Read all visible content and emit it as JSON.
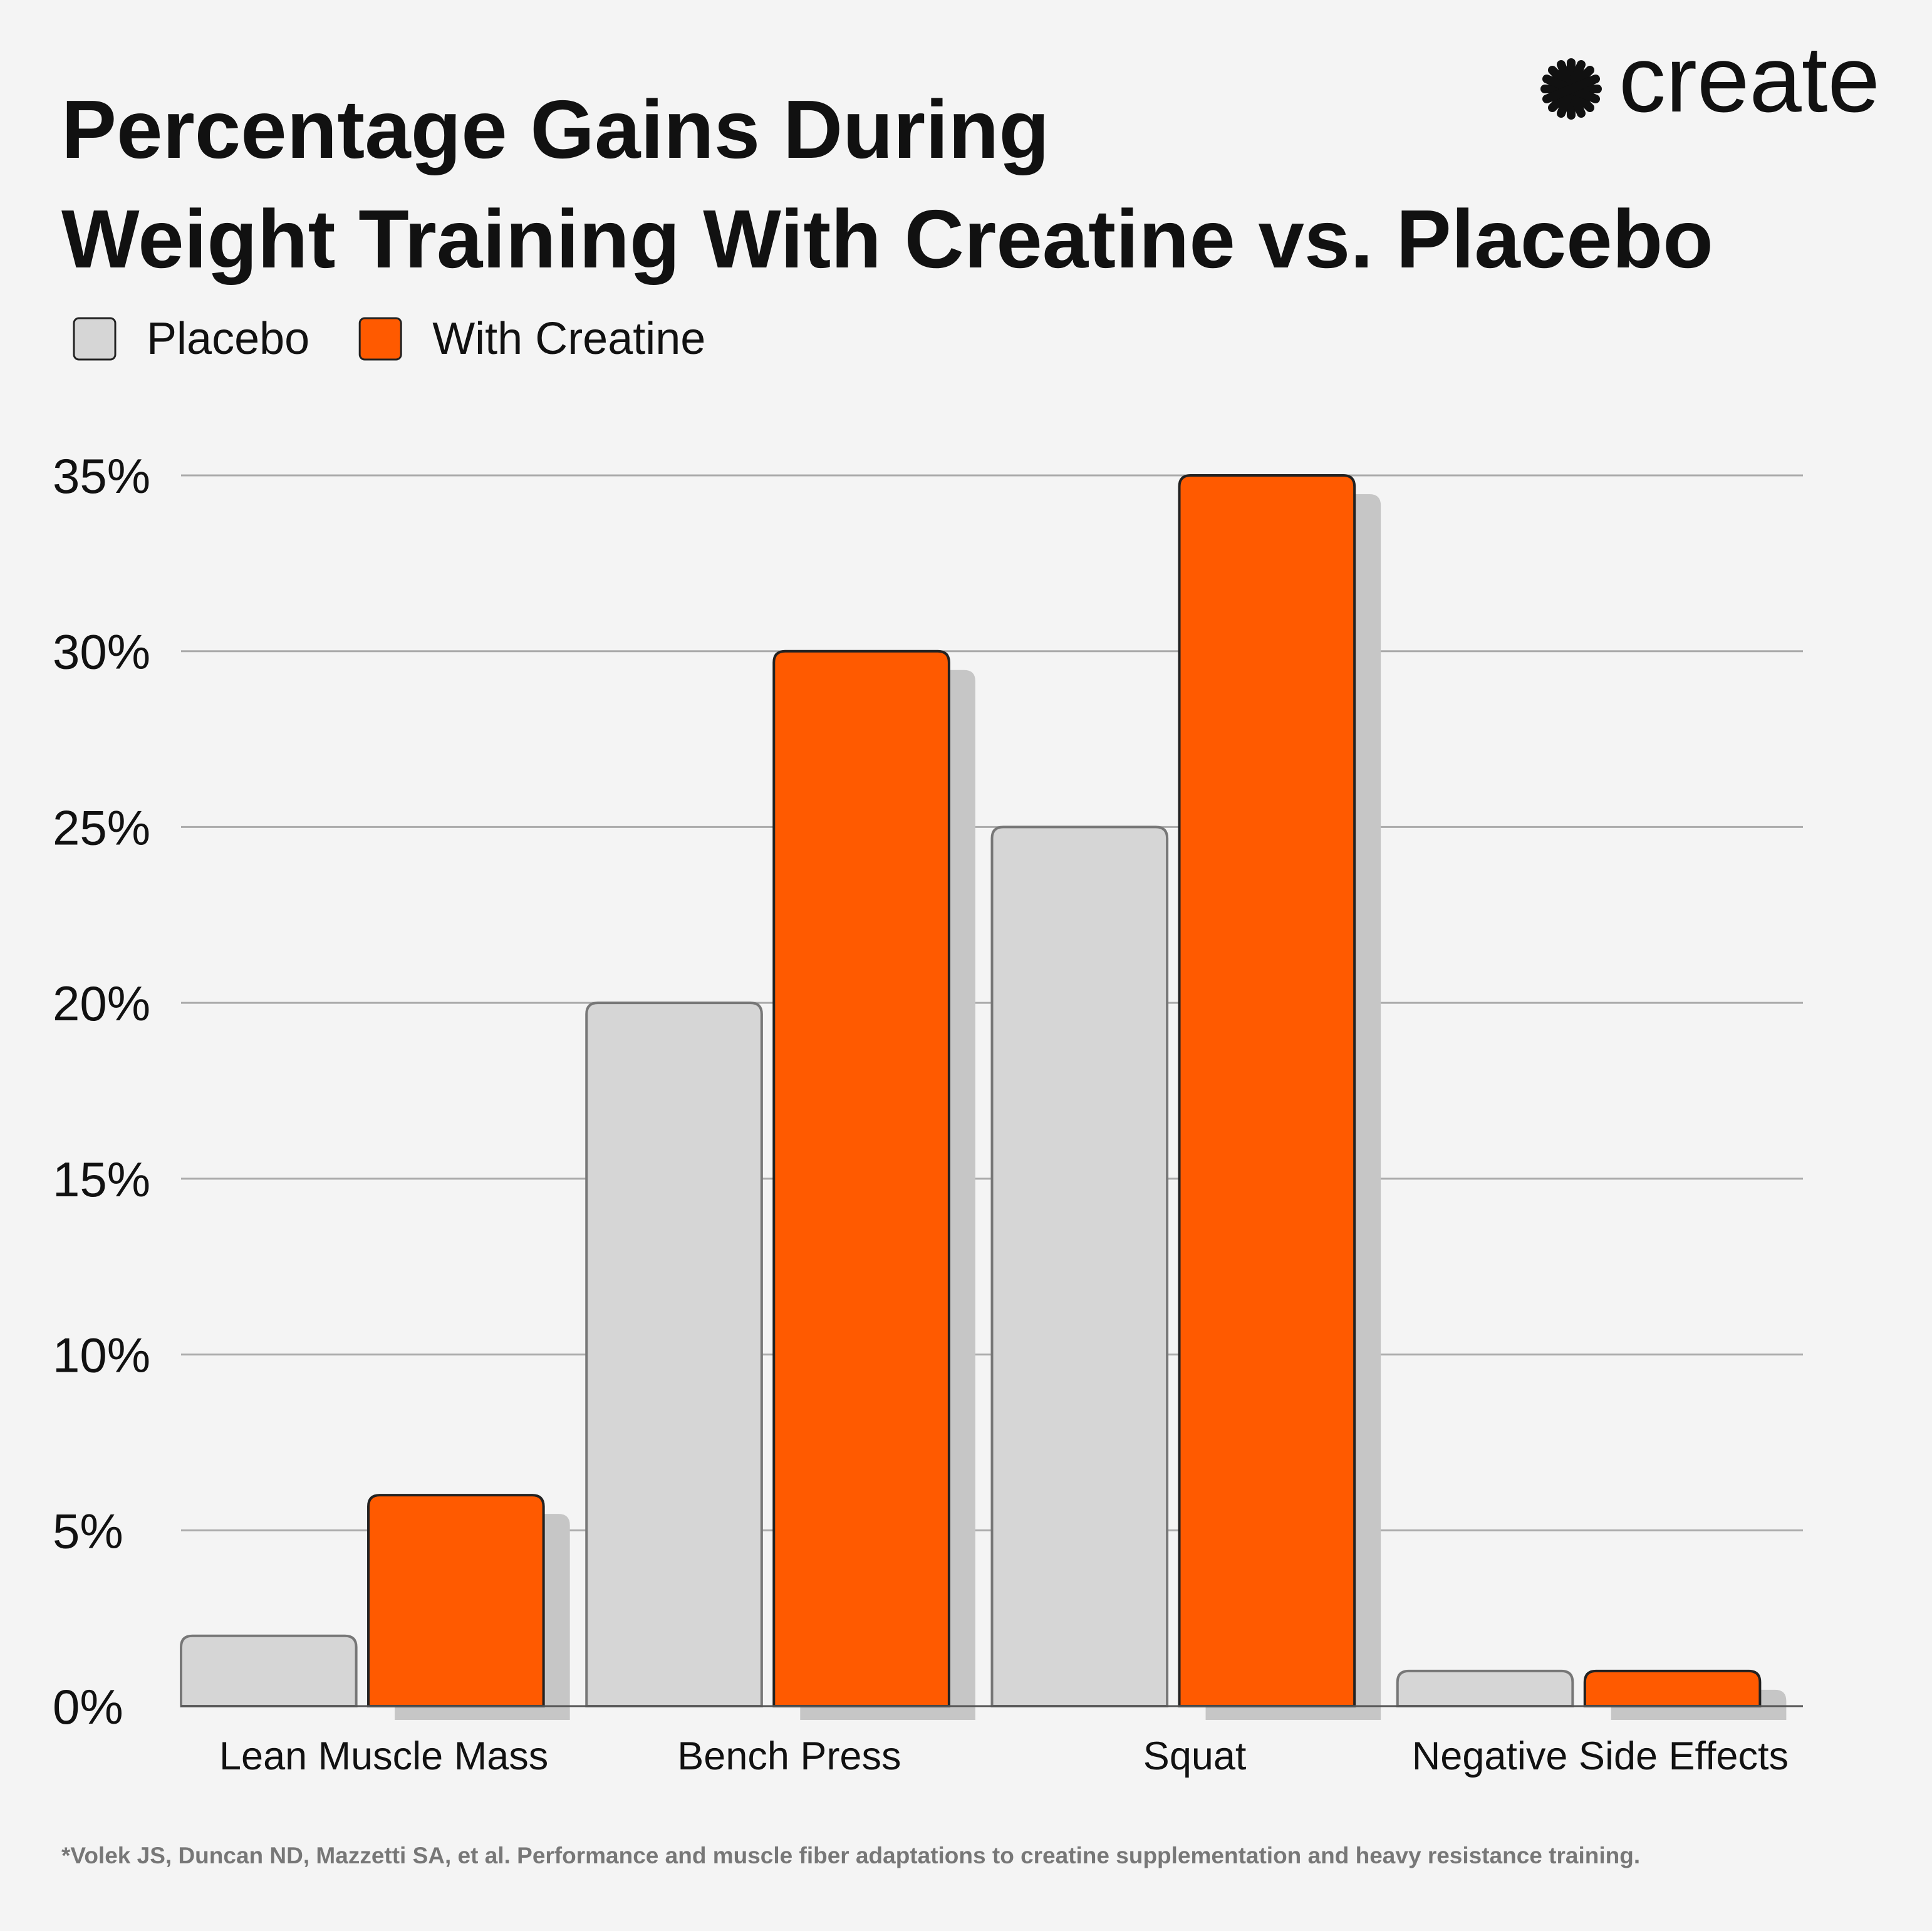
{
  "chart_data": {
    "type": "bar",
    "title": [
      "Percentage Gains During",
      "Weight Training With Creatine vs. Placebo"
    ],
    "logo": "create",
    "footnote": "*Volek JS, Duncan ND, Mazzetti SA, et al. Performance and muscle fiber adaptations to creatine supplementation and heavy resistance training.",
    "categories": [
      "Lean Muscle Mass",
      "Bench Press",
      "Squat",
      "Negative Side Effects"
    ],
    "series": [
      {
        "name": "Placebo",
        "color": "#d6d6d6",
        "values": [
          2,
          20,
          25,
          1
        ]
      },
      {
        "name": "With Creatine",
        "color": "#ff5a00",
        "values": [
          6,
          30,
          35,
          1
        ]
      }
    ],
    "ylim": [
      0,
      35
    ],
    "yticks": [
      {
        "value": 0,
        "label": "0%"
      },
      {
        "value": 5,
        "label": "5%"
      },
      {
        "value": 10,
        "label": "10%"
      },
      {
        "value": 15,
        "label": "15%"
      },
      {
        "value": 20,
        "label": "20%"
      },
      {
        "value": 25,
        "label": "25%"
      },
      {
        "value": 30,
        "label": "30%"
      },
      {
        "value": 35,
        "label": "35%"
      }
    ],
    "grid": true,
    "legend": "top-left"
  }
}
